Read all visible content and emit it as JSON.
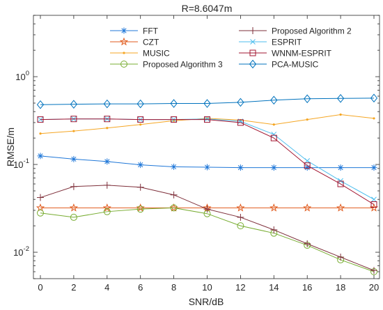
{
  "chart_data": {
    "type": "line",
    "title": "R=8.6047m",
    "xlabel": "SNR/dB",
    "ylabel": "RMSE/m",
    "xlim": [
      0,
      20
    ],
    "ylim": [
      0.005,
      5
    ],
    "yscale": "log",
    "grid": false,
    "legend_position": "top",
    "x": [
      0,
      2,
      4,
      6,
      8,
      10,
      12,
      14,
      16,
      18,
      20
    ],
    "xticks": [
      0,
      2,
      4,
      6,
      8,
      10,
      12,
      14,
      16,
      18,
      20
    ],
    "xtick_labels": [
      "0",
      "2",
      "4",
      "6",
      "8",
      "10",
      "12",
      "14",
      "16",
      "18",
      "20"
    ],
    "yticks": [
      {
        "value": 0.01,
        "base": "10",
        "exp": "-2"
      },
      {
        "value": 0.1,
        "base": "10",
        "exp": "-1"
      },
      {
        "value": 1,
        "base": "10",
        "exp": "0"
      }
    ],
    "series": [
      {
        "name": "FFT",
        "color": "#1f77d8",
        "marker": "asterisk",
        "values": [
          0.125,
          0.115,
          0.108,
          0.099,
          0.094,
          0.093,
          0.092,
          0.092,
          0.092,
          0.092,
          0.092
        ]
      },
      {
        "name": "CZT",
        "color": "#e05a1c",
        "marker": "star",
        "values": [
          0.032,
          0.032,
          0.032,
          0.032,
          0.032,
          0.032,
          0.032,
          0.032,
          0.032,
          0.032,
          0.032
        ]
      },
      {
        "name": "MUSIC",
        "color": "#f5a623",
        "marker": "dot",
        "values": [
          0.225,
          0.24,
          0.26,
          0.285,
          0.315,
          0.335,
          0.32,
          0.285,
          0.325,
          0.37,
          0.335
        ]
      },
      {
        "name": "Proposed Algorithm 3",
        "color": "#77ac30",
        "marker": "circle",
        "values": [
          0.028,
          0.025,
          0.029,
          0.031,
          0.032,
          0.0275,
          0.02,
          0.0165,
          0.012,
          0.0082,
          0.006
        ]
      },
      {
        "name": "Proposed Algorithm 2",
        "color": "#7e2f3a",
        "marker": "plus",
        "values": [
          0.042,
          0.056,
          0.058,
          0.055,
          0.045,
          0.031,
          0.025,
          0.018,
          0.0125,
          0.0088,
          0.0062
        ]
      },
      {
        "name": "ESPRIT",
        "color": "#4dbeee",
        "marker": "x",
        "values": [
          0.325,
          0.33,
          0.33,
          0.325,
          0.325,
          0.33,
          0.31,
          0.22,
          0.11,
          0.065,
          0.04
        ]
      },
      {
        "name": "WNNM-ESPRIT",
        "color": "#a2142f",
        "marker": "square",
        "values": [
          0.325,
          0.33,
          0.33,
          0.325,
          0.325,
          0.325,
          0.3,
          0.2,
          0.097,
          0.06,
          0.035
        ]
      },
      {
        "name": "PCA-MUSIC",
        "color": "#0072bd",
        "marker": "diamond",
        "values": [
          0.48,
          0.485,
          0.49,
          0.49,
          0.495,
          0.495,
          0.51,
          0.54,
          0.56,
          0.565,
          0.57
        ]
      }
    ],
    "legend_order": [
      [
        "FFT",
        "Proposed Algorithm 2"
      ],
      [
        "CZT",
        "ESPRIT"
      ],
      [
        "MUSIC",
        "WNNM-ESPRIT"
      ],
      [
        "Proposed Algorithm 3",
        "PCA-MUSIC"
      ]
    ]
  }
}
